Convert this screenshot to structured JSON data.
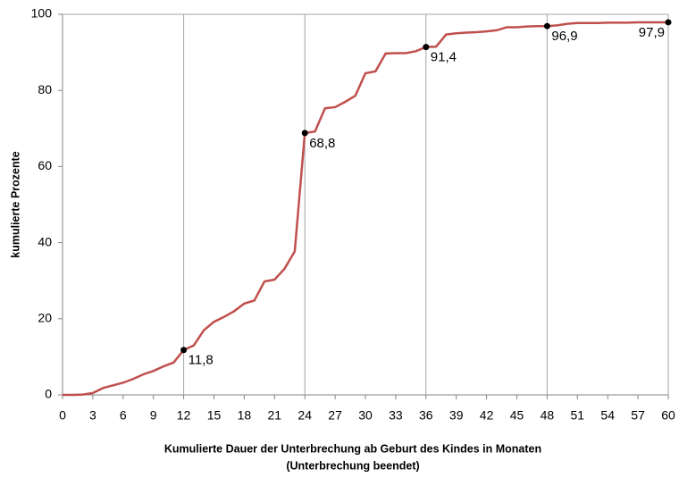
{
  "chart_data": {
    "type": "line",
    "ylabel": "kumulierte Prozente",
    "xlabel": [
      "Kumulierte Dauer der Unterbrechung ab Geburt des Kindes in Monaten",
      "(Unterbrechung beendet)"
    ],
    "xlim": [
      0,
      60
    ],
    "ylim": [
      0,
      100
    ],
    "xticks": [
      0,
      3,
      6,
      9,
      12,
      15,
      18,
      21,
      24,
      27,
      30,
      33,
      36,
      39,
      42,
      45,
      48,
      51,
      54,
      57,
      60
    ],
    "yticks": [
      0,
      20,
      40,
      60,
      80,
      100
    ],
    "xgrid": [
      12,
      24,
      36,
      48,
      60
    ],
    "series": [
      {
        "color": "#c0504d",
        "x": [
          0,
          1,
          2,
          3,
          4,
          5,
          6,
          7,
          8,
          9,
          10,
          11,
          12,
          13,
          14,
          15,
          16,
          17,
          18,
          19,
          20,
          21,
          22,
          23,
          24,
          25,
          26,
          27,
          28,
          29,
          30,
          31,
          32,
          33,
          34,
          35,
          36,
          37,
          38,
          39,
          40,
          41,
          42,
          43,
          44,
          45,
          46,
          47,
          48,
          49,
          50,
          51,
          52,
          53,
          54,
          55,
          56,
          57,
          58,
          59,
          60
        ],
        "values": [
          0,
          0,
          0.1,
          0.5,
          1.8,
          2.5,
          3.2,
          4.2,
          5.4,
          6.3,
          7.5,
          8.5,
          11.8,
          13,
          17,
          19.2,
          20.5,
          22,
          24,
          24.8,
          29.8,
          30.3,
          33.2,
          37.7,
          68.8,
          69.2,
          75.3,
          75.6,
          77,
          78.6,
          84.5,
          85,
          89.7,
          89.8,
          89.8,
          90.3,
          91.4,
          91.5,
          94.7,
          95,
          95.2,
          95.3,
          95.5,
          95.8,
          96.6,
          96.6,
          96.8,
          96.9,
          96.9,
          97.1,
          97.5,
          97.7,
          97.7,
          97.7,
          97.8,
          97.8,
          97.8,
          97.9,
          97.9,
          97.9,
          97.9
        ]
      },
      {
        "color": "#000000",
        "x": [
          12,
          24,
          36,
          48,
          60
        ],
        "values": [
          11.8,
          68.8,
          91.4,
          96.9,
          97.9
        ],
        "value_labels": [
          "11,8",
          "68,8",
          "91,4",
          "96,9",
          "97,9"
        ]
      }
    ]
  }
}
